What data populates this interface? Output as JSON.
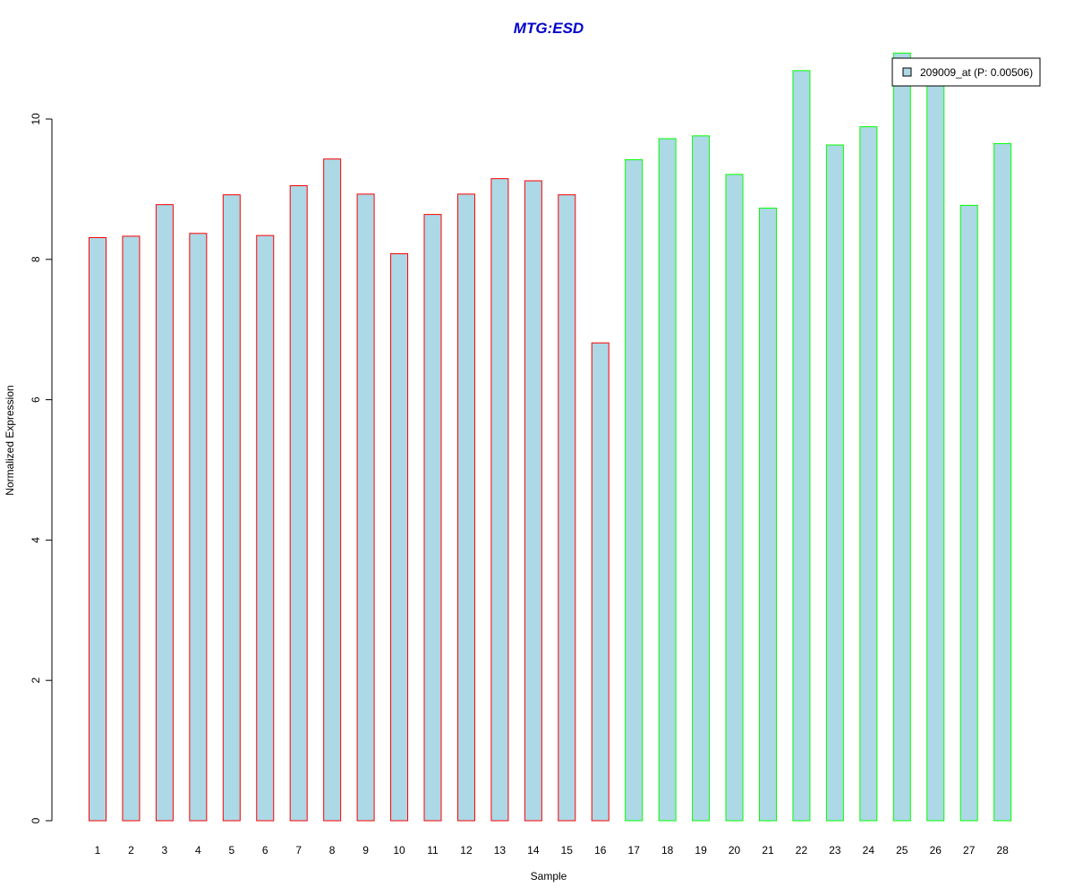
{
  "chart_data": {
    "type": "bar",
    "title": "MTG:ESD",
    "xlabel": "Sample",
    "ylabel": "Normalized Expression",
    "categories": [
      "1",
      "2",
      "3",
      "4",
      "5",
      "6",
      "7",
      "8",
      "9",
      "10",
      "11",
      "12",
      "13",
      "14",
      "15",
      "16",
      "17",
      "18",
      "19",
      "20",
      "21",
      "22",
      "23",
      "24",
      "25",
      "26",
      "27",
      "28"
    ],
    "values": [
      8.31,
      8.33,
      8.78,
      8.37,
      8.92,
      8.34,
      9.05,
      9.43,
      8.93,
      8.08,
      8.64,
      8.93,
      9.15,
      9.12,
      8.92,
      6.81,
      9.42,
      9.72,
      9.76,
      9.21,
      8.73,
      10.69,
      9.63,
      9.89,
      10.94,
      10.6,
      8.77,
      9.65
    ],
    "groups": [
      1,
      1,
      1,
      1,
      1,
      1,
      1,
      1,
      1,
      1,
      1,
      1,
      1,
      1,
      1,
      1,
      2,
      2,
      2,
      2,
      2,
      2,
      2,
      2,
      2,
      2,
      2,
      2
    ],
    "yticks": [
      "0",
      "2",
      "4",
      "6",
      "8",
      "10"
    ],
    "ylim": [
      0,
      11
    ],
    "legend": {
      "label": "209009_at (P: 0.00506)",
      "placement": "top-right"
    },
    "grid": false
  },
  "colors": {
    "title": "#0000cc",
    "bar_fill": "#add8e6",
    "group1_border": "#ff0000",
    "group2_border": "#00ff00",
    "axis": "#000000"
  }
}
